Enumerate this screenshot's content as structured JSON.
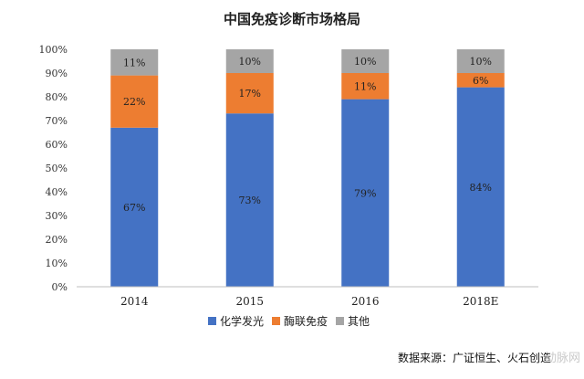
{
  "chart_data": {
    "type": "bar",
    "stacked": true,
    "title": "中国免疫诊断市场格局",
    "categories": [
      "2014",
      "2015",
      "2016",
      "2018E"
    ],
    "series": [
      {
        "name": "化学发光",
        "values": [
          67,
          73,
          79,
          84
        ],
        "labels": [
          "67%",
          "73%",
          "79%",
          "84%"
        ],
        "color": "#4472c4"
      },
      {
        "name": "酶联免疫",
        "values": [
          22,
          17,
          11,
          6
        ],
        "labels": [
          "22%",
          "17%",
          "11%",
          "6%"
        ],
        "color": "#ed7d31"
      },
      {
        "name": "其他",
        "values": [
          11,
          10,
          10,
          10
        ],
        "labels": [
          "11%",
          "10%",
          "10%",
          "10%"
        ],
        "color": "#a5a5a5"
      }
    ],
    "ylim": [
      0,
      100
    ],
    "yticks": [
      "0%",
      "10%",
      "20%",
      "30%",
      "40%",
      "50%",
      "60%",
      "70%",
      "80%",
      "90%",
      "100%"
    ],
    "legend_position": "bottom",
    "grid": false
  },
  "source": "数据来源：广证恒生、火石创造",
  "watermark": "动脉网"
}
